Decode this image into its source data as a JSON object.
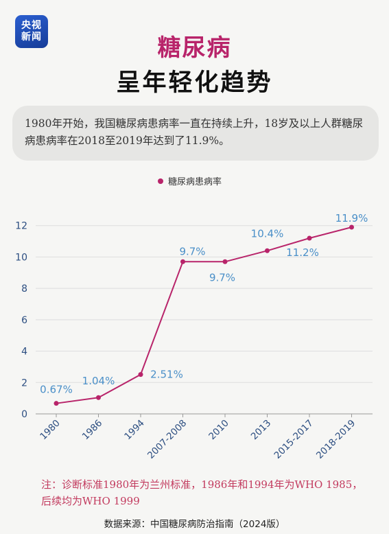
{
  "logo": {
    "line1": "央视",
    "line2": "新闻"
  },
  "header": {
    "title": "糖尿病",
    "subtitle": "呈年轻化趋势"
  },
  "summary": {
    "text": "1980年开始，我国糖尿病患病率一直在持续上升，18岁及以上人群糖尿病患病率在2018至2019年达到了11.9%。"
  },
  "chart_data": {
    "type": "line",
    "categories": [
      "1980",
      "1986",
      "1994",
      "2007-2008",
      "2010",
      "2013",
      "2015-2017",
      "2018-2019"
    ],
    "series": [
      {
        "name": "糖尿病患病率",
        "values": [
          0.67,
          1.04,
          2.51,
          9.7,
          9.7,
          10.4,
          11.2,
          11.9
        ],
        "labels": [
          "0.67%",
          "1.04%",
          "2.51%",
          "9.7%",
          "9.7%",
          "10.4%",
          "11.2%",
          "11.9%"
        ]
      }
    ],
    "yticks": [
      0,
      2,
      4,
      6,
      8,
      10,
      12
    ],
    "ylim": [
      0,
      12.6
    ],
    "grid": true,
    "legend": "top-center",
    "colors": {
      "line": "#b8246a",
      "label": "#4a8fc8",
      "tick": "#2b4d80",
      "grid": "#dddddd"
    }
  },
  "footer": {
    "note": "注：诊断标准1980年为兰州标准，1986年和1994年为WHO 1985，后续均为WHO 1999",
    "source": "数据来源：中国糖尿病防治指南（2024版）"
  }
}
